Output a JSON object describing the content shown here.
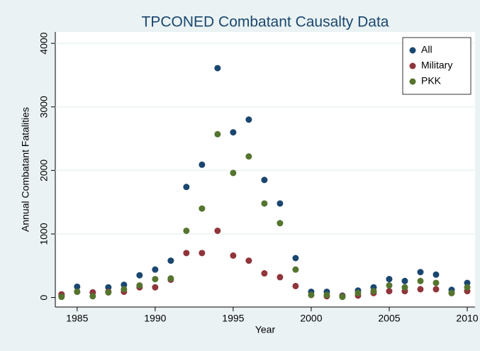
{
  "chart_data": {
    "type": "scatter",
    "title": "TPCONED Combatant Causalty Data",
    "x_label": "Year",
    "y_label": "Annual Combatant Fatalities",
    "x": [
      1984,
      1985,
      1986,
      1987,
      1988,
      1989,
      1990,
      1991,
      1992,
      1993,
      1994,
      1995,
      1996,
      1997,
      1998,
      1999,
      2000,
      2001,
      2002,
      2003,
      2004,
      2005,
      2006,
      2007,
      2008,
      2009,
      2010
    ],
    "series": [
      {
        "name": "All",
        "color": "#1a476f",
        "values": [
          30,
          170,
          80,
          160,
          200,
          350,
          440,
          580,
          1740,
          2090,
          3610,
          2600,
          2800,
          1850,
          1480,
          620,
          90,
          90,
          30,
          110,
          160,
          290,
          260,
          400,
          360,
          120,
          230
        ]
      },
      {
        "name": "Military",
        "color": "#90353b",
        "values": [
          50,
          90,
          80,
          90,
          90,
          160,
          160,
          280,
          700,
          700,
          1050,
          660,
          580,
          380,
          320,
          180,
          40,
          20,
          20,
          30,
          70,
          100,
          100,
          130,
          130,
          70,
          100
        ]
      },
      {
        "name": "PKK",
        "color": "#55752f",
        "values": [
          10,
          90,
          20,
          80,
          130,
          190,
          290,
          300,
          1050,
          1400,
          2570,
          1960,
          2220,
          1480,
          1170,
          440,
          40,
          40,
          10,
          70,
          100,
          190,
          160,
          260,
          230,
          70,
          160
        ]
      }
    ],
    "xlim": [
      1983.6,
      2010.5
    ],
    "ylim": [
      -150,
      4180
    ],
    "xticks": [
      1985,
      1990,
      1995,
      2000,
      2005,
      2010
    ],
    "yticks": [
      0,
      1000,
      2000,
      3000,
      4000
    ],
    "grid": true,
    "legend": "top-right"
  }
}
